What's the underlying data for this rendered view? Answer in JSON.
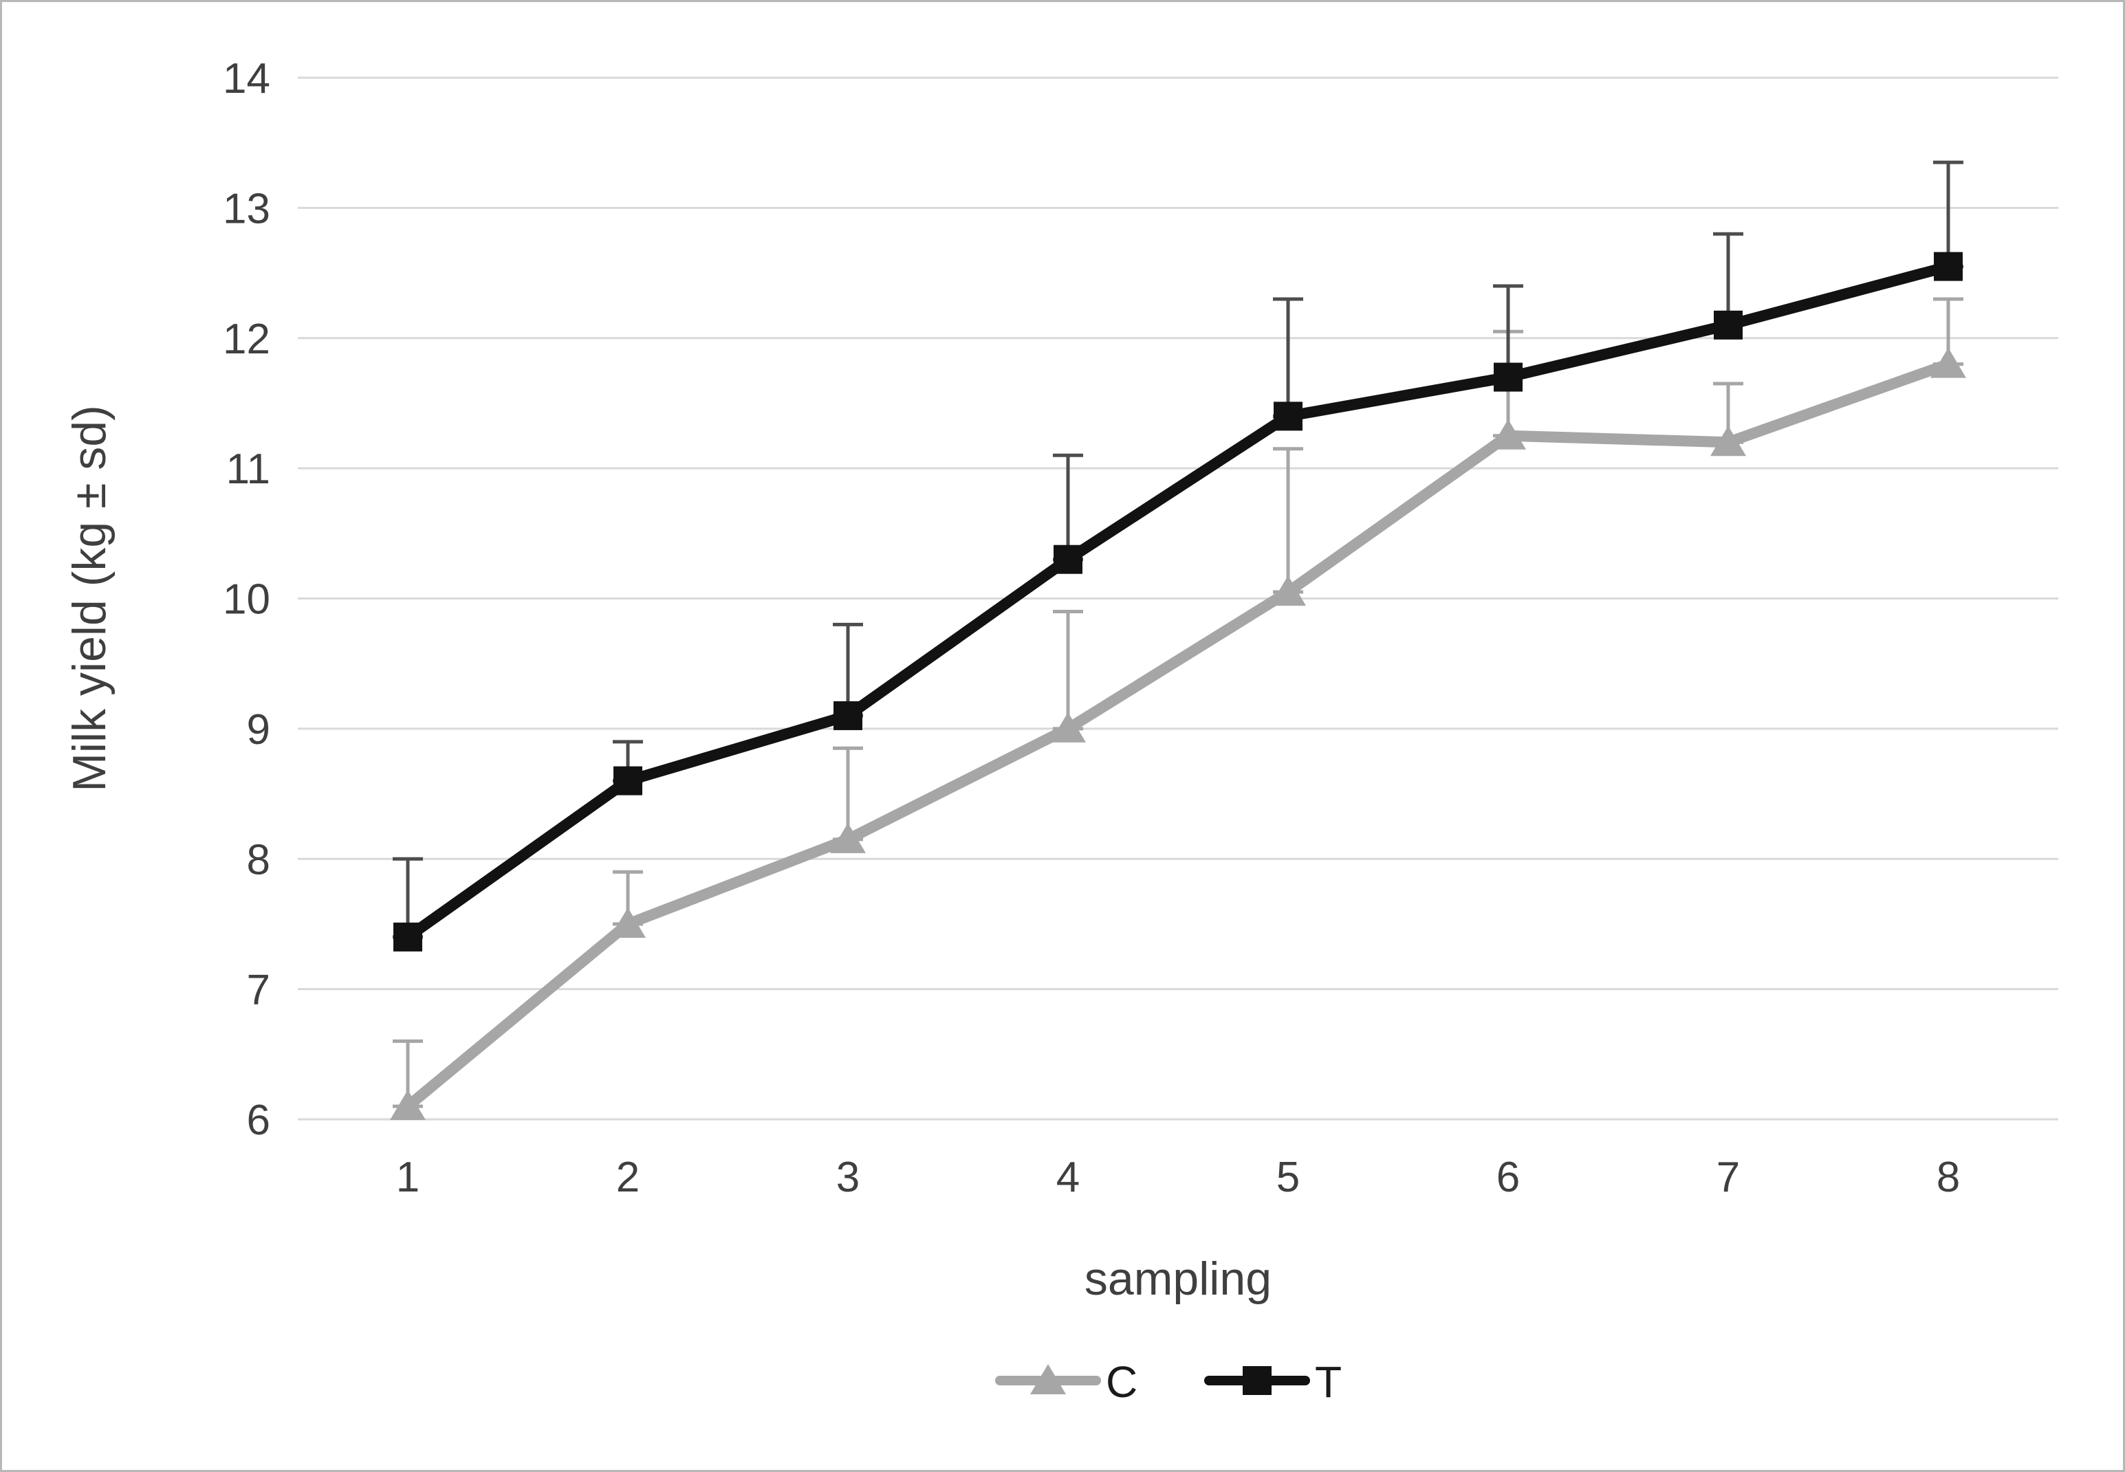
{
  "style": {
    "background": "#ffffff",
    "grid_color": "#d9d9d9",
    "axis_text_color": "#3f3f3f",
    "frame_border_color": "#b7b7b7"
  },
  "chart_data": {
    "type": "line",
    "title": "",
    "xlabel": "sampling",
    "ylabel": "Milk yield (kg ± sd)",
    "x": [
      "1",
      "2",
      "3",
      "4",
      "5",
      "6",
      "7",
      "8"
    ],
    "ylim": [
      6,
      14
    ],
    "yticks": [
      6,
      7,
      8,
      9,
      10,
      11,
      12,
      13,
      14
    ],
    "grid": true,
    "legend_position": "bottom",
    "series": [
      {
        "name": "C",
        "marker": "triangle",
        "color": "#a6a6a6",
        "error_color": "#a6a6a6",
        "values": [
          6.1,
          7.5,
          8.15,
          9.0,
          10.05,
          11.25,
          11.2,
          11.8
        ],
        "errors_up": [
          0.5,
          0.4,
          0.7,
          0.9,
          1.1,
          0.8,
          0.45,
          0.5
        ]
      },
      {
        "name": "T",
        "marker": "square",
        "color": "#121212",
        "error_color": "#4d4d4d",
        "values": [
          7.4,
          8.6,
          9.1,
          10.3,
          11.4,
          11.7,
          12.1,
          12.55
        ],
        "errors_up": [
          0.6,
          0.3,
          0.7,
          0.8,
          0.9,
          0.7,
          0.7,
          0.8
        ]
      }
    ]
  }
}
